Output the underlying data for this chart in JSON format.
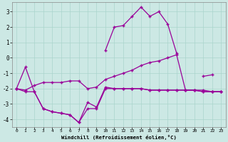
{
  "xlabel": "Windchill (Refroidissement éolien,°C)",
  "background_color": "#cce8e4",
  "grid_color": "#aad4cc",
  "line_color": "#990099",
  "x_values": [
    0,
    1,
    2,
    3,
    4,
    5,
    6,
    7,
    8,
    9,
    10,
    11,
    12,
    13,
    14,
    15,
    16,
    17,
    18,
    19,
    20,
    21,
    22,
    23
  ],
  "line_upper": [
    null,
    null,
    null,
    null,
    null,
    null,
    null,
    null,
    null,
    null,
    0.5,
    2.0,
    2.1,
    2.7,
    3.3,
    2.7,
    3.0,
    2.2,
    0.3,
    null,
    null,
    -1.2,
    -1.1,
    null
  ],
  "line_mid_rise": [
    -2.0,
    -2.1,
    -1.8,
    -1.6,
    -1.6,
    -1.6,
    -1.5,
    -1.5,
    -2.0,
    -1.9,
    -1.4,
    -1.2,
    -1.0,
    -0.8,
    -0.5,
    -0.3,
    -0.2,
    0.0,
    0.2,
    -2.1,
    -2.1,
    -2.1,
    -2.2,
    -2.2
  ],
  "line_low_a": [
    -2.0,
    -0.6,
    -2.2,
    -3.3,
    -3.5,
    -3.6,
    -3.7,
    -4.2,
    -2.9,
    -3.2,
    -1.9,
    -2.0,
    -2.0,
    -2.0,
    -2.0,
    -2.1,
    -2.1,
    -2.1,
    -2.1,
    -2.1,
    -2.1,
    -2.2,
    -2.2,
    -2.2
  ],
  "line_low_b": [
    -2.0,
    -2.2,
    -2.2,
    -3.3,
    -3.5,
    -3.6,
    -3.7,
    -4.2,
    -3.3,
    -3.3,
    -2.0,
    -2.0,
    -2.0,
    -2.0,
    -2.0,
    -2.1,
    -2.1,
    -2.1,
    -2.1,
    -2.1,
    -2.1,
    -2.2,
    -2.2,
    -2.2
  ],
  "ylim": [
    -4.5,
    3.6
  ],
  "xlim": [
    -0.5,
    23.5
  ],
  "yticks": [
    -4,
    -3,
    -2,
    -1,
    0,
    1,
    2,
    3
  ],
  "xticks": [
    0,
    1,
    2,
    3,
    4,
    5,
    6,
    7,
    8,
    9,
    10,
    11,
    12,
    13,
    14,
    15,
    16,
    17,
    18,
    19,
    20,
    21,
    22,
    23
  ]
}
